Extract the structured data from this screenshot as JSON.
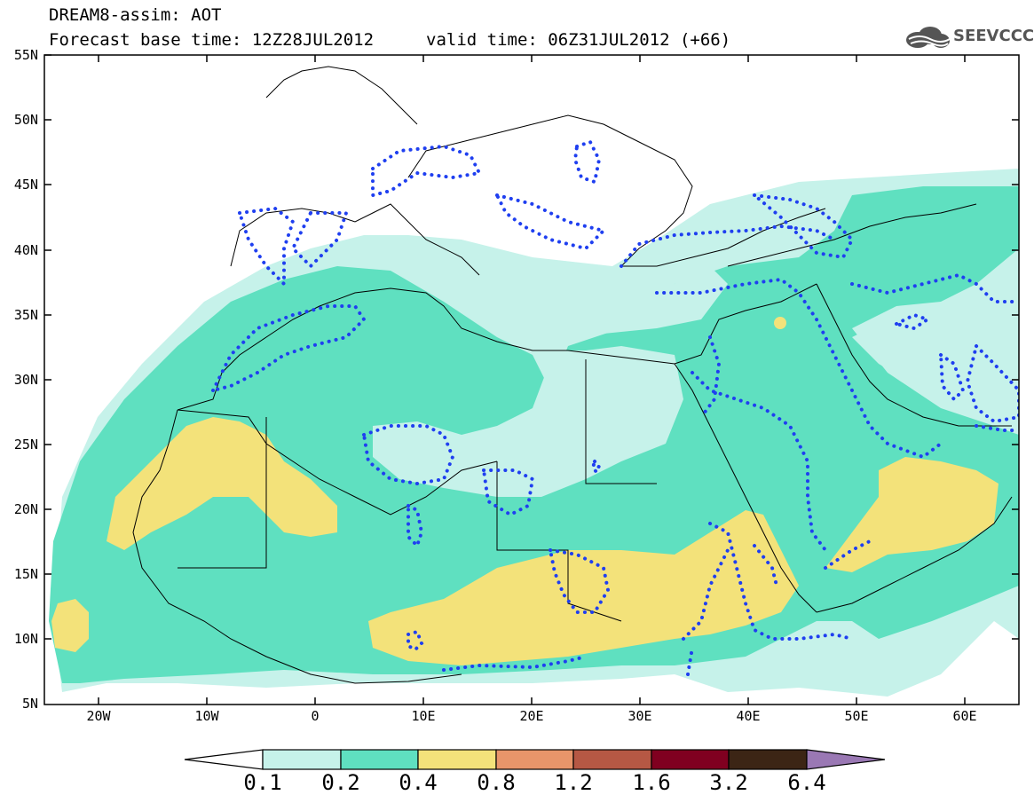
{
  "header": {
    "title_line1": "DREAM8-assim: AOT",
    "title_line2": "Forecast base time: 12Z28JUL2012",
    "valid_time": "valid time: 06Z31JUL2012 (+66)",
    "logo_text": "SEEVCCC"
  },
  "map": {
    "lat_labels": [
      "55N",
      "50N",
      "45N",
      "40N",
      "35N",
      "30N",
      "25N",
      "20N",
      "15N",
      "10N",
      "5N"
    ],
    "lon_labels": [
      "20W",
      "10W",
      "0",
      "10E",
      "20E",
      "30E",
      "40E",
      "50E",
      "60E"
    ],
    "colors": {
      "c_0.1": "#c6f2ea",
      "c_0.2": "#5fe0c0",
      "c_0.4": "#f3e27a",
      "c_0.8": "#e8956a",
      "c_1.2": "#b65844",
      "c_1.6": "#800020",
      "c_3.2": "#3c2515",
      "c_6.4": "#9a78b4",
      "contour": "#1f3ff0"
    }
  },
  "colorbar": {
    "labels": [
      "0.1",
      "0.2",
      "0.4",
      "0.8",
      "1.2",
      "1.6",
      "3.2",
      "6.4"
    ]
  }
}
